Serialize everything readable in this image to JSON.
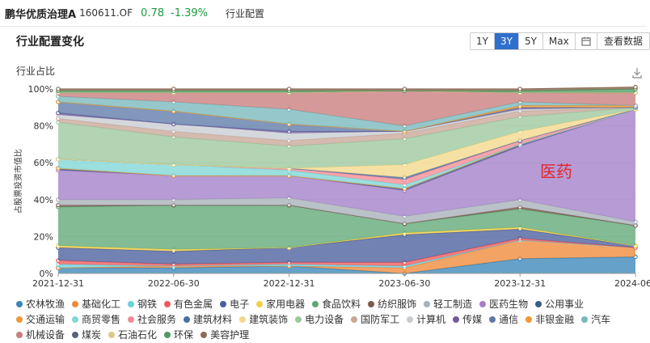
{
  "header": {
    "fund_name": "鹏华优质治理A",
    "fund_code": "160611.OF",
    "price": "0.78",
    "change": "-1.39%",
    "section": "行业配置"
  },
  "panel": {
    "title": "行业配置变化",
    "ranges": [
      "1Y",
      "3Y",
      "5Y",
      "Max"
    ],
    "active_range": "3Y",
    "view_data_label": "查看数据",
    "chart_title": "行业占比"
  },
  "chart_data": {
    "type": "area",
    "stacked": true,
    "ylabel": "占股票投资市值比",
    "ylim": [
      0,
      100
    ],
    "yticks": [
      "0%",
      "20%",
      "40%",
      "60%",
      "80%",
      "100%"
    ],
    "x": [
      "2021-12-31",
      "2022-06-30",
      "2022-12-31",
      "2023-06-30",
      "2023-12-31",
      "2024-06-30"
    ],
    "xtick_labels": [
      "2021-12-31",
      "2022-06-30",
      "2022-12-31",
      "2023-06-30",
      "2023-12-31",
      "2024-06"
    ],
    "annotation": "医药",
    "grid": true,
    "legend_position": "bottom",
    "series": [
      {
        "name": "农林牧渔",
        "color": "#3a86b8",
        "values": [
          3,
          3,
          4,
          0,
          8,
          9
        ]
      },
      {
        "name": "基础化工",
        "color": "#f08a3a",
        "values": [
          0,
          1,
          0,
          3,
          10,
          5
        ]
      },
      {
        "name": "钢铁",
        "color": "#6ccfdc",
        "values": [
          2,
          0,
          1,
          1,
          0,
          0
        ]
      },
      {
        "name": "有色金属",
        "color": "#ef5b5b",
        "values": [
          2,
          1,
          1,
          2,
          1,
          0
        ]
      },
      {
        "name": "电子",
        "color": "#4a5f9c",
        "values": [
          7,
          7,
          8,
          15,
          5,
          1
        ]
      },
      {
        "name": "家用电器",
        "color": "#f2cf48",
        "values": [
          1,
          1,
          0,
          1,
          1,
          0
        ]
      },
      {
        "name": "食品饮料",
        "color": "#5fa876",
        "values": [
          21,
          24,
          23,
          5,
          10,
          11
        ]
      },
      {
        "name": "纺织服饰",
        "color": "#7e5a4e",
        "values": [
          1,
          0,
          0,
          0,
          1,
          0
        ]
      },
      {
        "name": "轻工制造",
        "color": "#a8b0b8",
        "values": [
          3,
          3,
          4,
          4,
          4,
          2
        ]
      },
      {
        "name": "医药生物",
        "color": "#a37fc8",
        "values": [
          16,
          13,
          12,
          14,
          29,
          61
        ]
      },
      {
        "name": "公用事业",
        "color": "#3e5a84",
        "values": [
          1,
          0,
          0,
          1,
          1,
          0
        ]
      },
      {
        "name": "交通运输",
        "color": "#f09a3a",
        "values": [
          0,
          0,
          0,
          0,
          0,
          0
        ]
      },
      {
        "name": "商贸零售",
        "color": "#7fd6d6",
        "values": [
          5,
          6,
          3,
          2,
          0,
          0
        ]
      },
      {
        "name": "社会服务",
        "color": "#f28c94",
        "values": [
          0,
          0,
          1,
          3,
          2,
          0
        ]
      },
      {
        "name": "建筑材料",
        "color": "#4c6fa8",
        "values": [
          0,
          0,
          0,
          1,
          0,
          0
        ]
      },
      {
        "name": "建筑装饰",
        "color": "#f3d98a",
        "values": [
          0,
          0,
          0,
          7,
          5,
          0
        ]
      },
      {
        "name": "电力设备",
        "color": "#9cc89e",
        "values": [
          20,
          15,
          12,
          14,
          8,
          1
        ]
      },
      {
        "name": "国防军工",
        "color": "#c9a898",
        "values": [
          2,
          3,
          3,
          3,
          3,
          0
        ]
      },
      {
        "name": "计算机",
        "color": "#c8cdd2",
        "values": [
          2,
          4,
          4,
          1,
          1,
          0
        ]
      },
      {
        "name": "传媒",
        "color": "#6f5b9c",
        "values": [
          1,
          0,
          1,
          0,
          1,
          0
        ]
      },
      {
        "name": "通信",
        "color": "#5d7aa8",
        "values": [
          6,
          7,
          4,
          0,
          0,
          0
        ]
      },
      {
        "name": "非银金融",
        "color": "#f0982e",
        "values": [
          0,
          0,
          0,
          0,
          1,
          1
        ]
      },
      {
        "name": "汽车",
        "color": "#78b8bd",
        "values": [
          3,
          5,
          8,
          3,
          2,
          0
        ]
      },
      {
        "name": "机械设备",
        "color": "#cb7c7c",
        "values": [
          2,
          5,
          9,
          19,
          5,
          7
        ]
      },
      {
        "name": "煤炭",
        "color": "#5a6478",
        "values": [
          0,
          0,
          0,
          0,
          0,
          0
        ]
      },
      {
        "name": "石油石化",
        "color": "#dcc98a",
        "values": [
          0,
          0,
          0,
          0,
          0,
          0
        ]
      },
      {
        "name": "环保",
        "color": "#4f9a62",
        "values": [
          1,
          1,
          1,
          0,
          1,
          2
        ]
      },
      {
        "name": "美容护理",
        "color": "#8a6b56",
        "values": [
          1,
          1,
          1,
          1,
          1,
          1
        ]
      }
    ]
  }
}
